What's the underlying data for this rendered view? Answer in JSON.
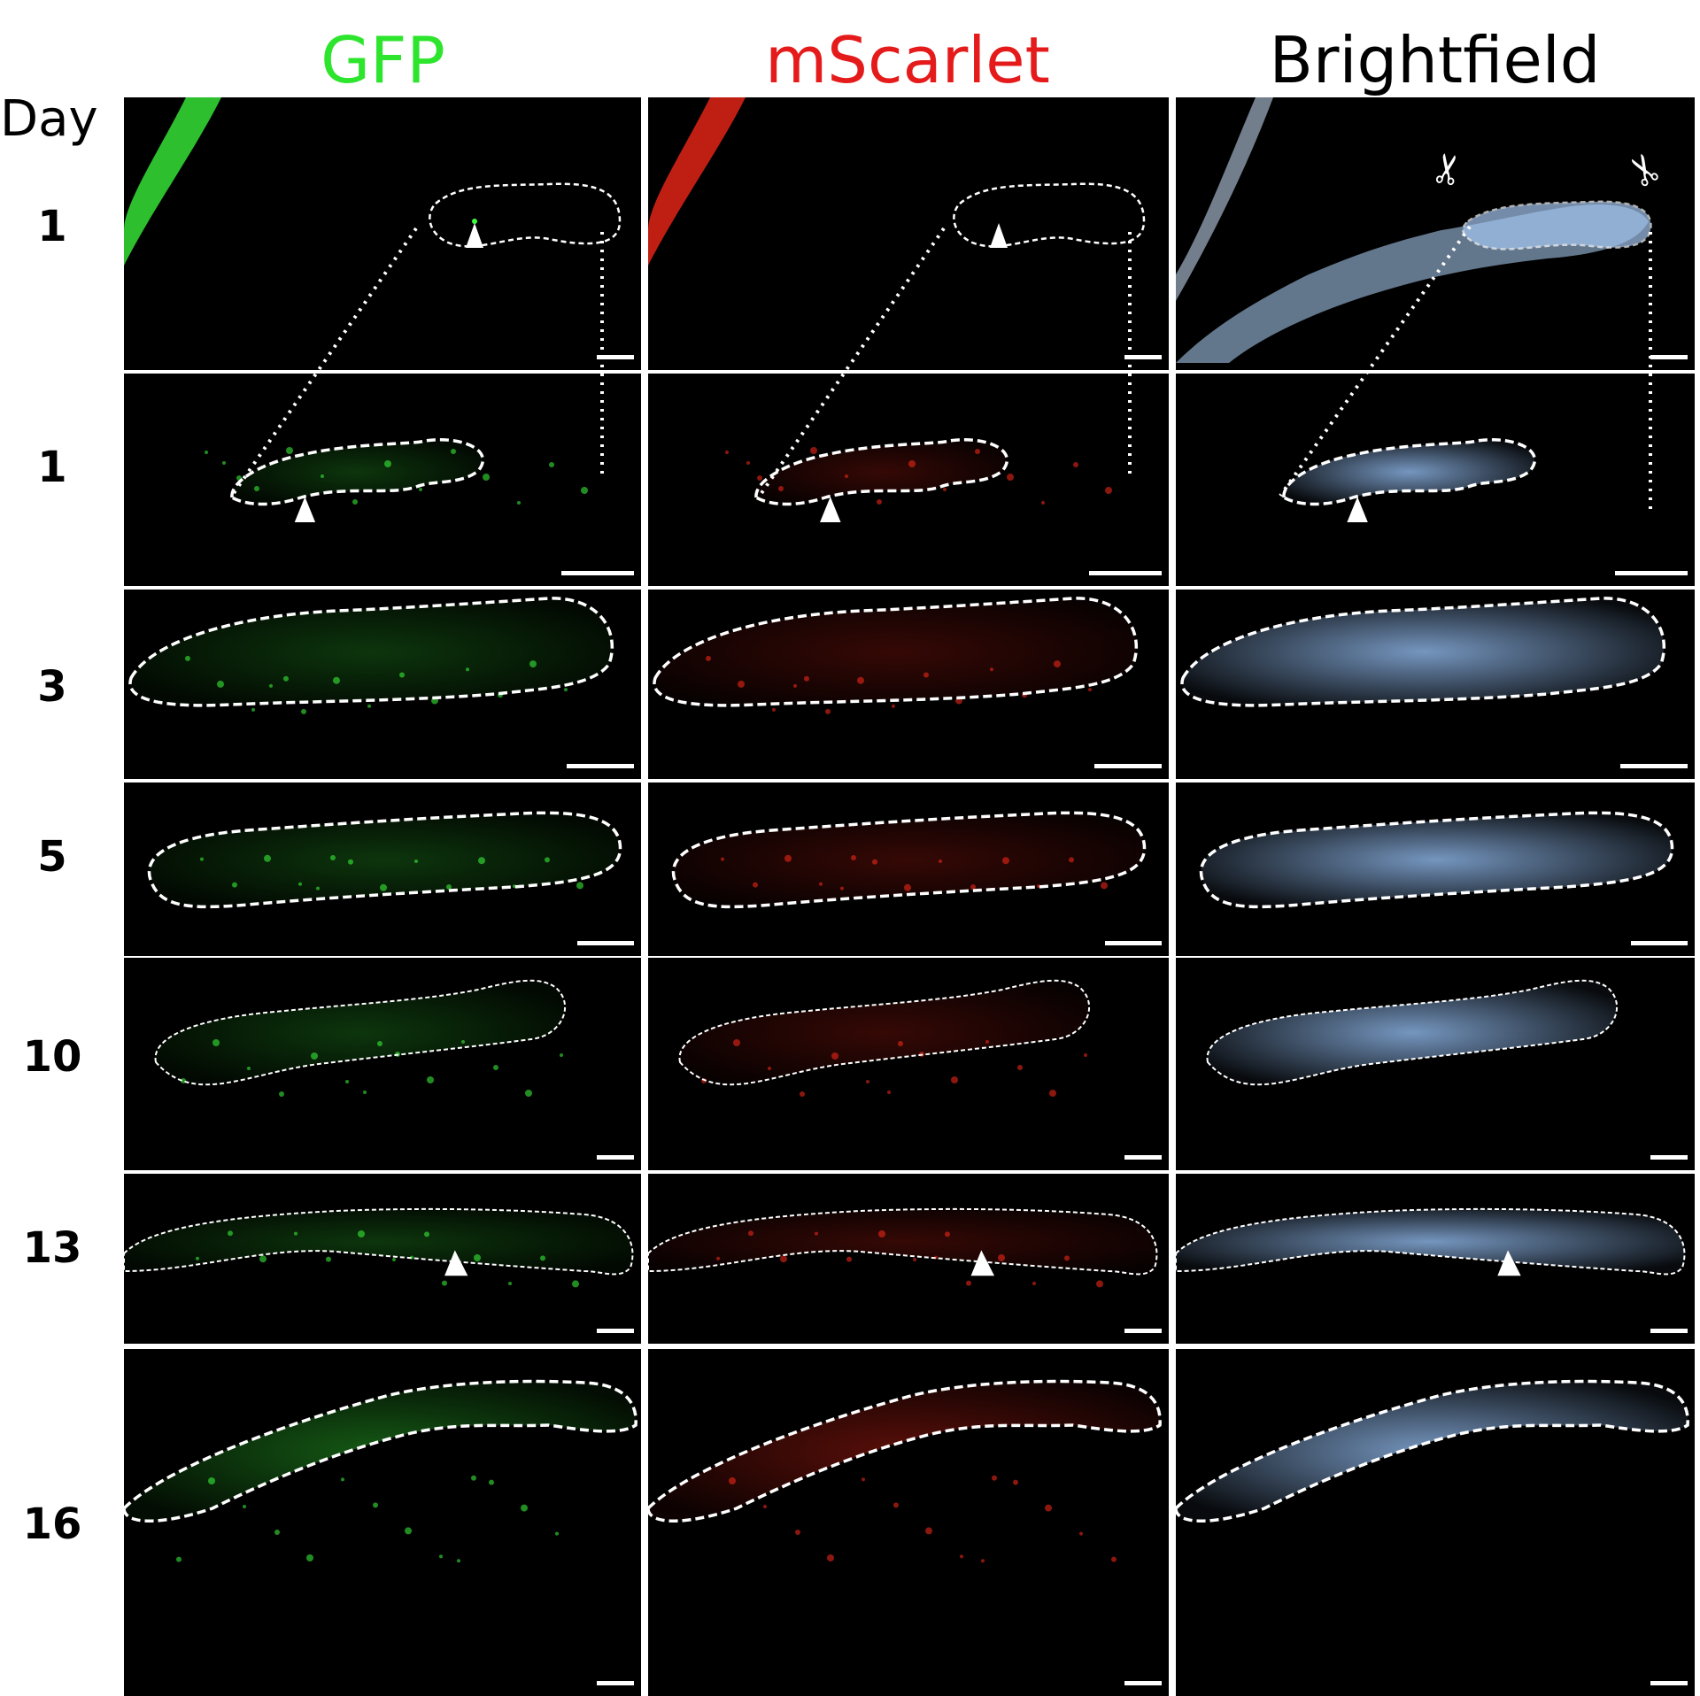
{
  "figure": {
    "day_label": "Day",
    "columns": [
      {
        "label": "GFP",
        "color": "#2de52d"
      },
      {
        "label": "mScarlet",
        "color": "#e51b1b"
      },
      {
        "label": "Brightfield",
        "color": "#000000"
      }
    ],
    "rows": [
      {
        "day": "1"
      },
      {
        "day": "1"
      },
      {
        "day": "3"
      },
      {
        "day": "5"
      },
      {
        "day": "10"
      },
      {
        "day": "13"
      },
      {
        "day": "16"
      }
    ],
    "icons": [
      "scissors-icon",
      "scissors-icon",
      "arrowhead-icon"
    ]
  }
}
